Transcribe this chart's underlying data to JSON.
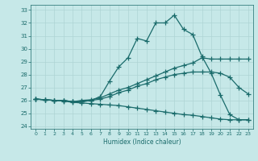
{
  "xlabel": "Humidex (Indice chaleur)",
  "xlim": [
    -0.5,
    23.5
  ],
  "ylim": [
    23.8,
    33.4
  ],
  "yticks": [
    24,
    25,
    26,
    27,
    28,
    29,
    30,
    31,
    32,
    33
  ],
  "xticks": [
    0,
    1,
    2,
    3,
    4,
    5,
    6,
    7,
    8,
    9,
    10,
    11,
    12,
    13,
    14,
    15,
    16,
    17,
    18,
    19,
    20,
    21,
    22,
    23
  ],
  "bg_color": "#c6e8e8",
  "grid_color": "#aed4d4",
  "line_color": "#1a6b6b",
  "line_width": 0.9,
  "marker": "+",
  "marker_size": 4,
  "marker_ew": 0.9,
  "series": [
    {
      "x": [
        0,
        1,
        2,
        3,
        4,
        5,
        6,
        7,
        8,
        9,
        10,
        11,
        12,
        13,
        14,
        15,
        16,
        17,
        18,
        19,
        20,
        21,
        22,
        23
      ],
      "y": [
        26.1,
        26.05,
        26.0,
        26.0,
        25.9,
        25.9,
        26.0,
        26.3,
        27.5,
        28.6,
        29.3,
        30.8,
        30.6,
        32.0,
        32.0,
        32.6,
        31.5,
        31.1,
        29.4,
        28.1,
        26.4,
        24.9,
        24.5,
        24.5
      ]
    },
    {
      "x": [
        0,
        1,
        2,
        3,
        4,
        5,
        6,
        7,
        8,
        9,
        10,
        11,
        12,
        13,
        14,
        15,
        16,
        17,
        18,
        19,
        20,
        21,
        22,
        23
      ],
      "y": [
        26.1,
        26.05,
        26.0,
        26.0,
        25.9,
        26.0,
        26.05,
        26.2,
        26.5,
        26.8,
        27.0,
        27.3,
        27.6,
        27.9,
        28.2,
        28.5,
        28.7,
        28.9,
        29.3,
        29.2,
        29.2,
        29.2,
        29.2,
        29.2
      ]
    },
    {
      "x": [
        0,
        1,
        2,
        3,
        4,
        5,
        6,
        7,
        8,
        9,
        10,
        11,
        12,
        13,
        14,
        15,
        16,
        17,
        18,
        19,
        20,
        21,
        22,
        23
      ],
      "y": [
        26.1,
        26.05,
        26.0,
        26.0,
        25.9,
        25.9,
        26.0,
        26.1,
        26.3,
        26.6,
        26.8,
        27.1,
        27.3,
        27.6,
        27.8,
        28.0,
        28.1,
        28.2,
        28.2,
        28.2,
        28.1,
        27.8,
        27.0,
        26.5
      ]
    },
    {
      "x": [
        0,
        1,
        2,
        3,
        4,
        5,
        6,
        7,
        8,
        9,
        10,
        11,
        12,
        13,
        14,
        15,
        16,
        17,
        18,
        19,
        20,
        21,
        22,
        23
      ],
      "y": [
        26.1,
        26.05,
        26.0,
        25.95,
        25.85,
        25.8,
        25.75,
        25.7,
        25.65,
        25.6,
        25.5,
        25.4,
        25.3,
        25.2,
        25.1,
        25.0,
        24.9,
        24.85,
        24.75,
        24.65,
        24.55,
        24.5,
        24.5,
        24.5
      ]
    }
  ]
}
